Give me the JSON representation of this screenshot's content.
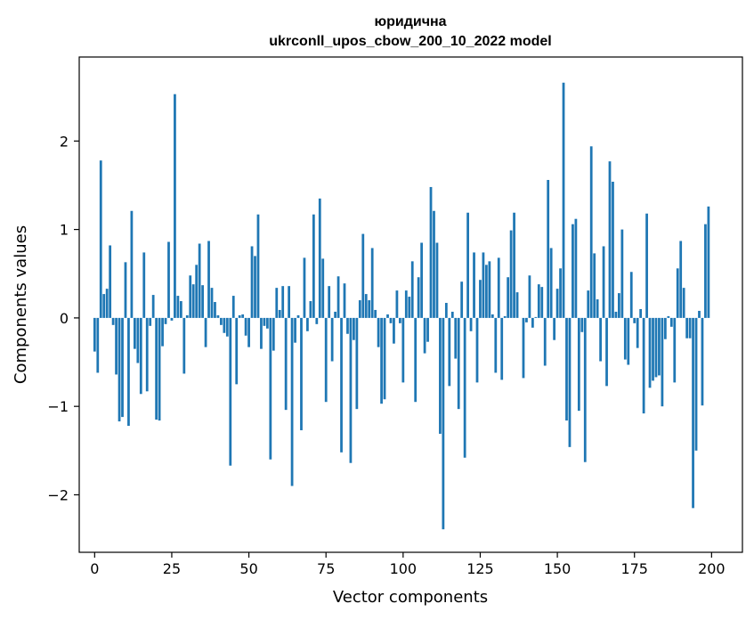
{
  "chart_data": {
    "type": "bar",
    "title_line1": "юридична",
    "title_line2": "ukrconll_upos_cbow_200_10_2022 model",
    "xlabel": "Vector components",
    "ylabel": "Components values",
    "xlim": [
      -5,
      210
    ],
    "ylim": [
      -2.65,
      2.95
    ],
    "xticks": [
      0,
      25,
      50,
      75,
      100,
      125,
      150,
      175,
      200
    ],
    "yticks": [
      -2,
      -1,
      0,
      1,
      2
    ],
    "ytick_labels": [
      "−2",
      "−1",
      "0",
      "1",
      "2"
    ],
    "bar_color": "#1f77b4",
    "grid": false,
    "values": [
      -0.38,
      -0.62,
      1.78,
      0.27,
      0.33,
      0.82,
      -0.08,
      -0.64,
      -1.17,
      -1.12,
      0.63,
      -1.22,
      1.21,
      -0.35,
      -0.51,
      -0.86,
      0.74,
      -0.83,
      -0.09,
      0.26,
      -1.15,
      -1.16,
      -0.32,
      -0.07,
      0.86,
      -0.03,
      2.53,
      0.25,
      0.19,
      -0.63,
      0.03,
      0.48,
      0.38,
      0.6,
      0.84,
      0.37,
      -0.33,
      0.87,
      0.34,
      0.18,
      0.03,
      -0.08,
      -0.17,
      -0.21,
      -1.67,
      0.25,
      -0.75,
      0.03,
      0.04,
      -0.2,
      -0.33,
      0.81,
      0.7,
      1.17,
      -0.35,
      -0.09,
      -0.12,
      -1.6,
      -0.37,
      0.34,
      0.09,
      0.36,
      -1.04,
      0.36,
      -1.9,
      -0.28,
      0.03,
      -1.27,
      0.68,
      -0.15,
      0.19,
      1.17,
      -0.07,
      1.35,
      0.67,
      -0.95,
      0.36,
      -0.49,
      0.07,
      0.47,
      -1.52,
      0.39,
      -0.18,
      -1.64,
      -0.25,
      -1.03,
      0.2,
      0.95,
      0.27,
      0.2,
      0.79,
      0.09,
      -0.33,
      -0.97,
      -0.92,
      0.04,
      -0.06,
      -0.29,
      0.31,
      -0.06,
      -0.73,
      0.31,
      0.24,
      0.64,
      -0.95,
      0.46,
      0.85,
      -0.4,
      -0.27,
      1.48,
      1.21,
      0.85,
      -1.31,
      -2.39,
      0.17,
      -0.77,
      0.07,
      -0.46,
      -1.03,
      0.41,
      -1.58,
      1.19,
      -0.15,
      0.74,
      -0.73,
      0.43,
      0.74,
      0.6,
      0.64,
      0.04,
      -0.62,
      0.68,
      -0.7,
      0.02,
      0.46,
      0.99,
      1.19,
      0.29,
      0.0,
      -0.68,
      -0.05,
      0.48,
      -0.11,
      0.01,
      0.38,
      0.35,
      -0.54,
      1.56,
      0.79,
      -0.25,
      0.33,
      0.56,
      2.66,
      -1.16,
      -1.46,
      1.06,
      1.12,
      -1.05,
      -0.16,
      -1.63,
      0.31,
      1.94,
      0.73,
      0.21,
      -0.49,
      0.81,
      -0.77,
      1.77,
      1.54,
      0.07,
      0.28,
      1.0,
      -0.47,
      -0.53,
      0.52,
      -0.06,
      -0.34,
      0.1,
      -1.08,
      1.18,
      -0.79,
      -0.71,
      -0.67,
      -0.65,
      -1.0,
      -0.24,
      0.02,
      -0.1,
      -0.73,
      0.56,
      0.87,
      0.34,
      -0.23,
      -0.23,
      -2.15,
      -1.5,
      0.08,
      -0.99,
      1.06,
      1.26
    ]
  }
}
